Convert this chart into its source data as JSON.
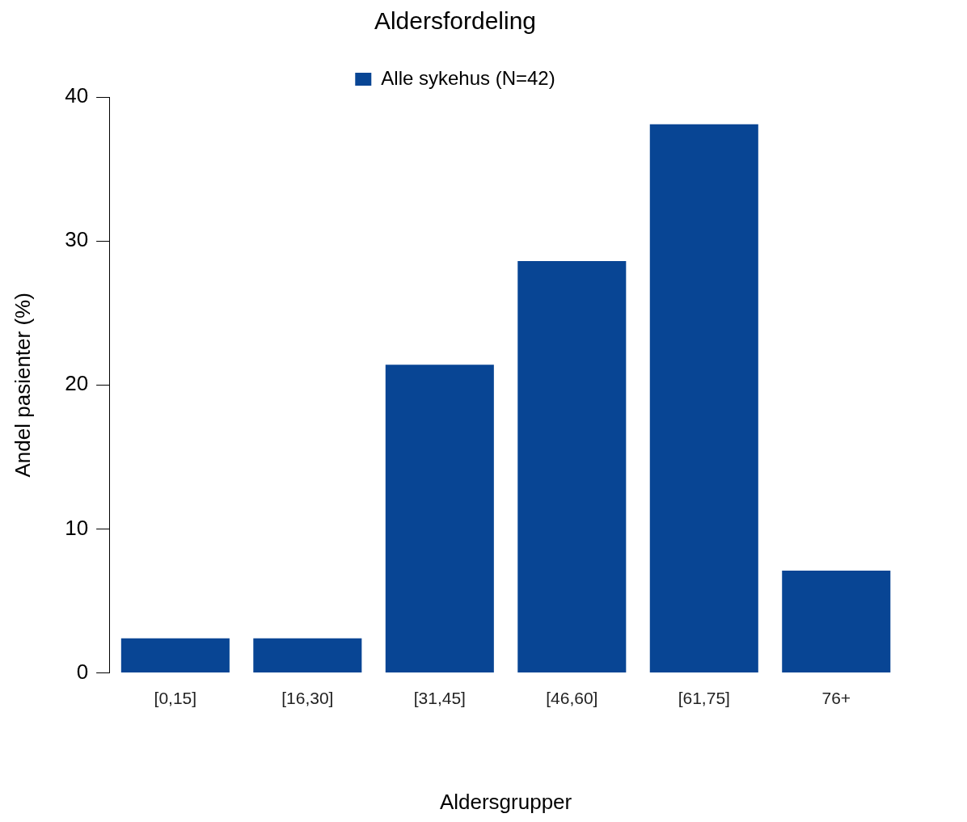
{
  "chart_data": {
    "type": "bar",
    "title": "Aldersfordeling",
    "xlabel": "Aldersgrupper",
    "ylabel": "Andel pasienter (%)",
    "categories": [
      "[0,15]",
      "[16,30]",
      "[31,45]",
      "[46,60]",
      "[61,75]",
      "76+"
    ],
    "series": [
      {
        "name": "Alle sykehus (N=42)",
        "color": "#084594",
        "values": [
          2.4,
          2.4,
          21.4,
          28.6,
          38.1,
          7.1
        ]
      }
    ],
    "ylim": [
      0,
      40
    ],
    "yticks": [
      0,
      10,
      20,
      30,
      40
    ],
    "grid": false,
    "legend": "top"
  }
}
